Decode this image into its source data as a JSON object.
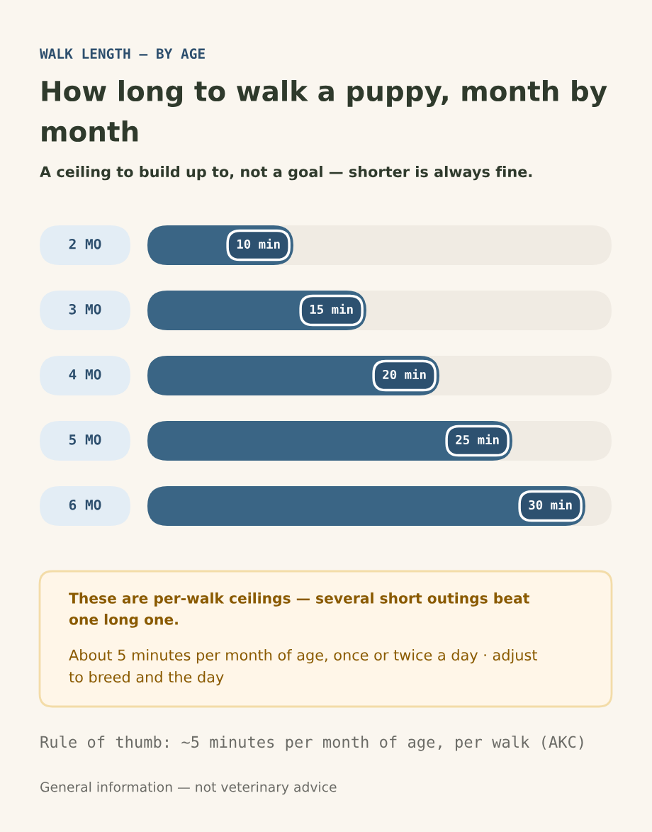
{
  "chart_data": {
    "type": "bar",
    "orientation": "horizontal",
    "tick_labels": "y",
    "title": "How long to walk a puppy, month by month",
    "subtitle": "A ceiling to build up to, not a goal — shorter is always fine.",
    "categories": [
      "2 MO",
      "3 MO",
      "4 MO",
      "5 MO",
      "6 MO"
    ],
    "values": [
      10,
      15,
      20,
      25,
      30
    ],
    "value_labels": [
      "10 min",
      "15 min",
      "20 min",
      "25 min",
      "30 min"
    ],
    "color": "#3a6585",
    "annotations": [
      "WALK LENGTH — BY AGE",
      "These are per-walk ceilings — several short outings beat one long one.",
      "About 5 minutes per month of age, once or twice a day · adjust to breed and the day",
      "Rule of thumb: ~5 minutes per month of age, per walk (AKC)",
      "General information — not veterinary advice"
    ]
  }
}
